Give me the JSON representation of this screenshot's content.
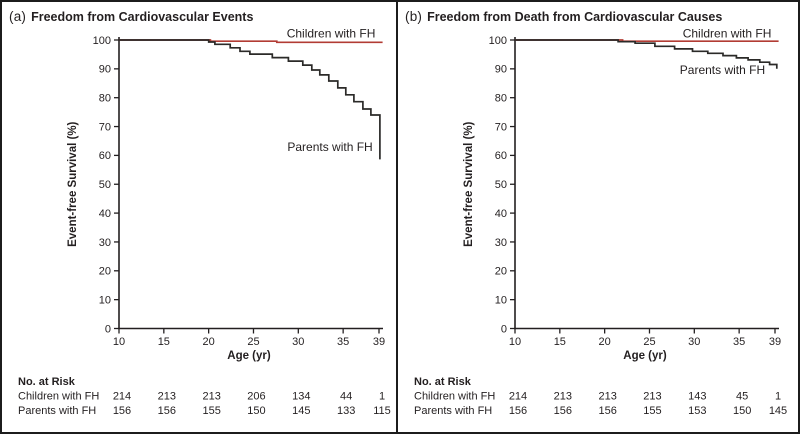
{
  "figure": {
    "background": "#ffffff",
    "border_color": "#1c1c1c",
    "text_color": "#231f20"
  },
  "chart_data": [
    {
      "type": "line",
      "subtype": "kaplan-meier-step",
      "panel_label": "(a)",
      "title": "Freedom from Cardiovascular Events",
      "xlabel": "Age (yr)",
      "ylabel": "Event-free Survival (%)",
      "xlim": [
        10,
        39
      ],
      "ylim": [
        0,
        100
      ],
      "x_ticks": [
        10,
        15,
        20,
        25,
        30,
        35,
        39
      ],
      "y_ticks": [
        0,
        10,
        20,
        30,
        40,
        50,
        60,
        70,
        80,
        90,
        100
      ],
      "grid": false,
      "legend_position": "inline-labels",
      "series": [
        {
          "name": "Children with FH",
          "color": "#b23c34",
          "points": [
            [
              10,
              100
            ],
            [
              20.2,
              100
            ],
            [
              20.2,
              99.6
            ],
            [
              27.6,
              99.6
            ],
            [
              27.6,
              99.2
            ],
            [
              39.4,
              99.2
            ]
          ],
          "label": {
            "text": "Children with FH",
            "x": 38.6,
            "y": 100.9,
            "anchor": "end"
          }
        },
        {
          "name": "Parents with FH",
          "color": "#2b2a28",
          "points": [
            [
              10,
              100
            ],
            [
              20,
              100
            ],
            [
              20,
              99.3
            ],
            [
              20.7,
              99.3
            ],
            [
              20.7,
              98.5
            ],
            [
              22.4,
              98.5
            ],
            [
              22.4,
              97.3
            ],
            [
              23.5,
              97.3
            ],
            [
              23.5,
              96.1
            ],
            [
              24.6,
              96.1
            ],
            [
              24.6,
              95.1
            ],
            [
              27.1,
              95.1
            ],
            [
              27.1,
              93.9
            ],
            [
              28.9,
              93.9
            ],
            [
              28.9,
              92.7
            ],
            [
              30.5,
              92.7
            ],
            [
              30.5,
              91.3
            ],
            [
              31.5,
              91.3
            ],
            [
              31.5,
              89.6
            ],
            [
              32.4,
              89.6
            ],
            [
              32.4,
              87.9
            ],
            [
              33.4,
              87.9
            ],
            [
              33.4,
              85.8
            ],
            [
              34.4,
              85.8
            ],
            [
              34.4,
              83.4
            ],
            [
              35.3,
              83.4
            ],
            [
              35.3,
              81
            ],
            [
              36.2,
              81
            ],
            [
              36.2,
              78.6
            ],
            [
              37.2,
              78.6
            ],
            [
              37.2,
              76.1
            ],
            [
              38.1,
              76.1
            ],
            [
              38.1,
              74
            ],
            [
              39.1,
              74
            ],
            [
              39.1,
              58.6
            ]
          ],
          "label": {
            "text": "Parents with FH",
            "x": 38.3,
            "y": 61.5,
            "anchor": "end"
          }
        }
      ],
      "risk_table": {
        "heading": "No. at Risk",
        "rows": [
          {
            "label": "Children with FH",
            "values": [
              214,
              213,
              213,
              206,
              134,
              44,
              1
            ]
          },
          {
            "label": "Parents with FH",
            "values": [
              156,
              156,
              155,
              150,
              145,
              133,
              115
            ]
          }
        ]
      }
    },
    {
      "type": "line",
      "subtype": "kaplan-meier-step",
      "panel_label": "(b)",
      "title": "Freedom from Death from Cardiovascular Causes",
      "xlabel": "Age (yr)",
      "ylabel": "Event-free Survival (%)",
      "xlim": [
        10,
        39
      ],
      "ylim": [
        0,
        100
      ],
      "x_ticks": [
        10,
        15,
        20,
        25,
        30,
        35,
        39
      ],
      "y_ticks": [
        0,
        10,
        20,
        30,
        40,
        50,
        60,
        70,
        80,
        90,
        100
      ],
      "grid": false,
      "legend_position": "inline-labels",
      "series": [
        {
          "name": "Children with FH",
          "color": "#b23c34",
          "points": [
            [
              10,
              100
            ],
            [
              22,
              100
            ],
            [
              22,
              99.6
            ],
            [
              39.4,
              99.6
            ]
          ],
          "label": {
            "text": "Children with FH",
            "x": 38.6,
            "y": 100.9,
            "anchor": "end"
          }
        },
        {
          "name": "Parents with FH",
          "color": "#2b2a28",
          "points": [
            [
              10,
              100
            ],
            [
              21.5,
              100
            ],
            [
              21.5,
              99.4
            ],
            [
              23.4,
              99.4
            ],
            [
              23.4,
              98.9
            ],
            [
              25.6,
              98.9
            ],
            [
              25.6,
              97.8
            ],
            [
              27.8,
              97.8
            ],
            [
              27.8,
              96.9
            ],
            [
              29.8,
              96.9
            ],
            [
              29.8,
              96.1
            ],
            [
              31.5,
              96.1
            ],
            [
              31.5,
              95.4
            ],
            [
              33.2,
              95.4
            ],
            [
              33.2,
              94.6
            ],
            [
              34.7,
              94.6
            ],
            [
              34.7,
              93.8
            ],
            [
              36,
              93.8
            ],
            [
              36,
              93.1
            ],
            [
              37.3,
              93.1
            ],
            [
              37.3,
              92.3
            ],
            [
              38.4,
              92.3
            ],
            [
              38.4,
              91.5
            ],
            [
              39.2,
              91.5
            ],
            [
              39.2,
              90
            ]
          ],
          "label": {
            "text": "Parents with FH",
            "x": 37.9,
            "y": 88.3,
            "anchor": "end"
          }
        }
      ],
      "risk_table": {
        "heading": "No. at Risk",
        "rows": [
          {
            "label": "Children with FH",
            "values": [
              214,
              213,
              213,
              213,
              143,
              45,
              1
            ]
          },
          {
            "label": "Parents with FH",
            "values": [
              156,
              156,
              156,
              155,
              153,
              150,
              145
            ]
          }
        ]
      }
    }
  ]
}
